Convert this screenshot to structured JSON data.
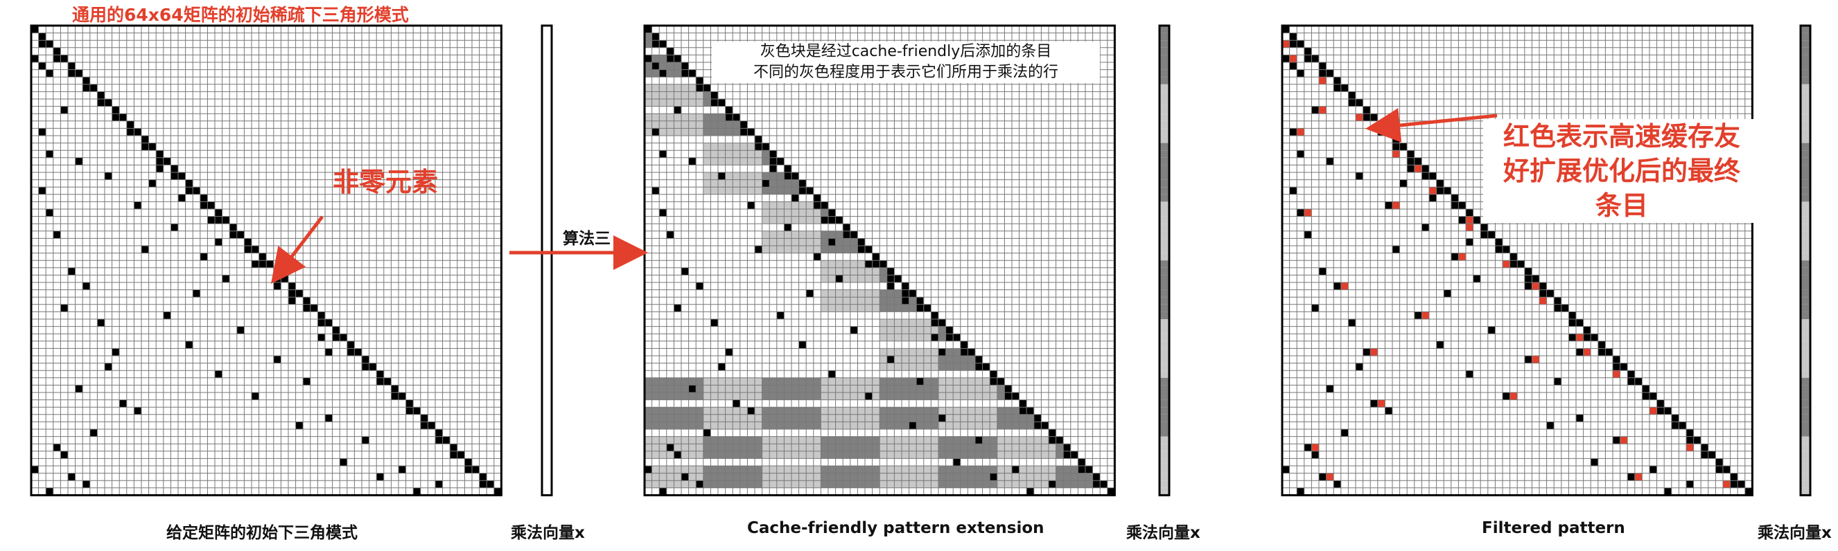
{
  "panel1": {
    "title": "通用的64x64矩阵的初始稀疏下三角形模式",
    "caption": "给定矩阵的初始下三角模式",
    "vector_label": "乘法向量x",
    "annotation": "非零元素"
  },
  "arrow_label": "算法三",
  "panel2": {
    "caption": "Cache-friendly pattern extension",
    "vector_label": "乘法向量x",
    "note_line1": "灰色块是经过cache-friendly后添加的条目",
    "note_line2": "不同的灰色程度用于表示它们所用于乘法的行"
  },
  "panel3": {
    "caption": "Filtered  pattern",
    "vector_label": "乘法向量x",
    "annotation_line1": "红色表示高速缓存友",
    "annotation_line2": "好扩展优化后的最终",
    "annotation_line3": "条目"
  },
  "colors": {
    "nonzero": "#000000",
    "accent_red": "#e2402c",
    "gray_dark": "#808080",
    "gray_light": "#c8c8c8",
    "grid_line": "#777777"
  }
}
